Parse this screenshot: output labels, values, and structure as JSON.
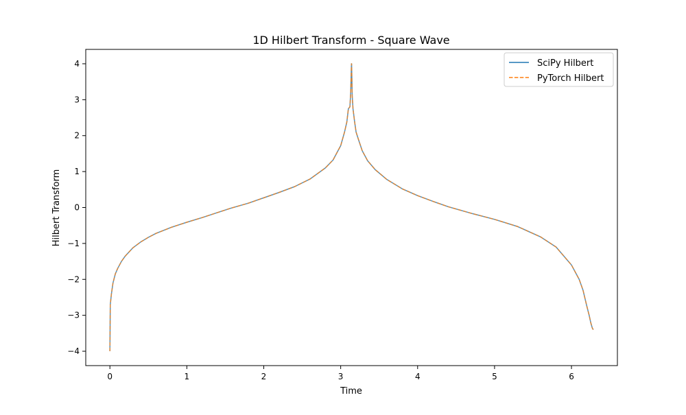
{
  "chart_data": {
    "type": "line",
    "title": "1D Hilbert Transform - Square Wave",
    "xlabel": "Time",
    "ylabel": "Hilbert Transform",
    "xlim": [
      -0.314,
      6.597
    ],
    "ylim": [
      -4.4,
      4.4
    ],
    "xticks": [
      0,
      1,
      2,
      3,
      4,
      5,
      6
    ],
    "yticks": [
      -4,
      -3,
      -2,
      -1,
      0,
      1,
      2,
      3,
      4
    ],
    "xtick_labels": [
      "0",
      "1",
      "2",
      "3",
      "4",
      "5",
      "6"
    ],
    "ytick_labels": [
      "−4",
      "−3",
      "−2",
      "−1",
      "0",
      "1",
      "2",
      "3",
      "4"
    ],
    "grid": false,
    "legend_position": "upper-right",
    "series": [
      {
        "name": "SciPy Hilbert",
        "color": "#1f77b4",
        "style": "solid",
        "x": [
          0.0,
          0.005,
          0.02,
          0.04,
          0.07,
          0.1,
          0.15,
          0.2,
          0.3,
          0.4,
          0.5,
          0.6,
          0.8,
          1.0,
          1.2,
          1.4,
          1.571,
          1.8,
          2.0,
          2.2,
          2.4,
          2.6,
          2.8,
          2.9,
          3.0,
          3.05,
          3.08,
          3.1,
          3.12,
          3.13,
          3.14,
          3.1416,
          3.15,
          3.16,
          3.18,
          3.2,
          3.23,
          3.28,
          3.35,
          3.45,
          3.6,
          3.8,
          4.0,
          4.2,
          4.4,
          4.712,
          5.0,
          5.3,
          5.6,
          5.8,
          6.0,
          6.1,
          6.15,
          6.2,
          6.23,
          6.25,
          6.27,
          6.283
        ],
        "y": [
          -4.0,
          -2.7,
          -2.4,
          -2.1,
          -1.85,
          -1.7,
          -1.5,
          -1.35,
          -1.12,
          -0.96,
          -0.83,
          -0.72,
          -0.55,
          -0.41,
          -0.28,
          -0.14,
          -0.02,
          0.12,
          0.27,
          0.42,
          0.58,
          0.79,
          1.1,
          1.32,
          1.72,
          2.1,
          2.38,
          2.75,
          2.8,
          3.2,
          4.0,
          4.0,
          3.1,
          2.75,
          2.4,
          2.1,
          1.9,
          1.58,
          1.3,
          1.05,
          0.78,
          0.52,
          0.33,
          0.17,
          0.02,
          -0.17,
          -0.33,
          -0.53,
          -0.82,
          -1.1,
          -1.6,
          -2.0,
          -2.3,
          -2.75,
          -3.0,
          -3.2,
          -3.35,
          -3.4
        ]
      },
      {
        "name": "PyTorch Hilbert",
        "color": "#ff7f0e",
        "style": "dashed",
        "x": [
          0.0,
          0.005,
          0.02,
          0.04,
          0.07,
          0.1,
          0.15,
          0.2,
          0.3,
          0.4,
          0.5,
          0.6,
          0.8,
          1.0,
          1.2,
          1.4,
          1.571,
          1.8,
          2.0,
          2.2,
          2.4,
          2.6,
          2.8,
          2.9,
          3.0,
          3.05,
          3.08,
          3.1,
          3.12,
          3.13,
          3.14,
          3.1416,
          3.15,
          3.16,
          3.18,
          3.2,
          3.23,
          3.28,
          3.35,
          3.45,
          3.6,
          3.8,
          4.0,
          4.2,
          4.4,
          4.712,
          5.0,
          5.3,
          5.6,
          5.8,
          6.0,
          6.1,
          6.15,
          6.2,
          6.23,
          6.25,
          6.27,
          6.283
        ],
        "y": [
          -4.0,
          -2.7,
          -2.4,
          -2.1,
          -1.85,
          -1.7,
          -1.5,
          -1.35,
          -1.12,
          -0.96,
          -0.83,
          -0.72,
          -0.55,
          -0.41,
          -0.28,
          -0.14,
          -0.02,
          0.12,
          0.27,
          0.42,
          0.58,
          0.79,
          1.1,
          1.32,
          1.72,
          2.1,
          2.38,
          2.75,
          2.8,
          3.2,
          4.0,
          4.0,
          3.1,
          2.75,
          2.4,
          2.1,
          1.9,
          1.58,
          1.3,
          1.05,
          0.78,
          0.52,
          0.33,
          0.17,
          0.02,
          -0.17,
          -0.33,
          -0.53,
          -0.82,
          -1.1,
          -1.6,
          -2.0,
          -2.3,
          -2.75,
          -3.0,
          -3.2,
          -3.35,
          -3.4
        ]
      }
    ]
  }
}
